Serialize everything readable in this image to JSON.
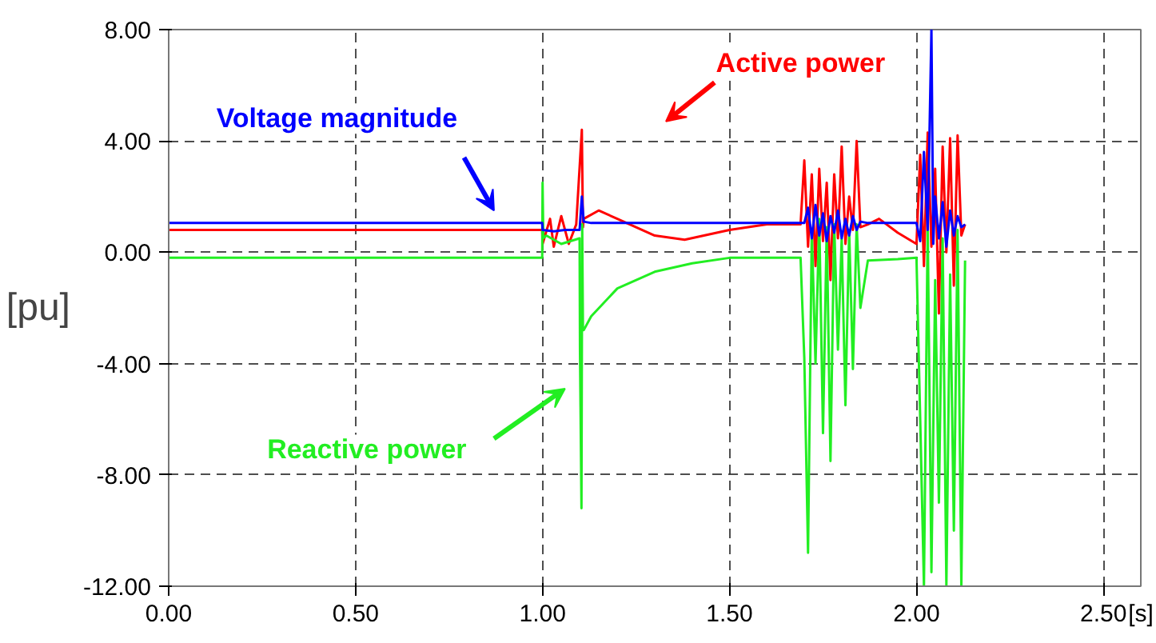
{
  "chart_data": {
    "type": "line",
    "xlabel": "[s]",
    "ylabel": "[pu]",
    "xlim": [
      0,
      2.6
    ],
    "ylim": [
      -12,
      8
    ],
    "xticks": [
      {
        "value": 0,
        "label": "0.00"
      },
      {
        "value": 0.5,
        "label": "0.50"
      },
      {
        "value": 1,
        "label": "1.00"
      },
      {
        "value": 1.5,
        "label": "1.50"
      },
      {
        "value": 2,
        "label": "2.00"
      },
      {
        "value": 2.5,
        "label": "2.50"
      }
    ],
    "yticks": [
      {
        "value": -12,
        "label": "-12.00"
      },
      {
        "value": -8,
        "label": "-8.00"
      },
      {
        "value": -4,
        "label": "-4.00"
      },
      {
        "value": 0,
        "label": "0.00"
      },
      {
        "value": 4,
        "label": "4.00"
      },
      {
        "value": 8,
        "label": "8.00"
      }
    ],
    "grid": true,
    "legend": false,
    "marker": "none",
    "line_style": "solid",
    "series": [
      {
        "name": "Active power",
        "color": "#ff0000",
        "x": [
          0,
          0.999,
          1.0,
          1.02,
          1.03,
          1.05,
          1.07,
          1.09,
          1.105,
          1.108,
          1.11,
          1.15,
          1.2,
          1.3,
          1.38,
          1.5,
          1.6,
          1.69,
          1.7,
          1.71,
          1.72,
          1.73,
          1.74,
          1.75,
          1.76,
          1.77,
          1.78,
          1.79,
          1.8,
          1.81,
          1.82,
          1.83,
          1.84,
          1.85,
          1.87,
          1.9,
          1.95,
          2.0,
          2.01,
          2.02,
          2.03,
          2.04,
          2.05,
          2.06,
          2.07,
          2.08,
          2.09,
          2.1,
          2.11,
          2.12,
          2.13
        ],
        "values": [
          0.8,
          0.8,
          0.3,
          1.2,
          0.2,
          1.3,
          0.3,
          1.0,
          4.4,
          0.9,
          1.2,
          1.5,
          1.2,
          0.6,
          0.45,
          0.8,
          1.0,
          1.0,
          3.3,
          0.2,
          2.8,
          -0.5,
          3.0,
          0.4,
          2.5,
          -1.0,
          2.8,
          0.5,
          3.8,
          0.3,
          2.0,
          0.8,
          4.0,
          0.9,
          1.0,
          1.2,
          0.7,
          0.3,
          3.5,
          -0.5,
          4.3,
          0.2,
          3.0,
          -2.2,
          3.8,
          0.0,
          4.1,
          -1.2,
          4.2,
          0.6,
          1.0
        ]
      },
      {
        "name": "Reactive power",
        "color": "#22ee22",
        "x": [
          0,
          0.999,
          1.0,
          1.002,
          1.01,
          1.05,
          1.099,
          1.1,
          1.104,
          1.106,
          1.108,
          1.11,
          1.13,
          1.2,
          1.3,
          1.4,
          1.5,
          1.6,
          1.69,
          1.7,
          1.71,
          1.72,
          1.73,
          1.74,
          1.75,
          1.76,
          1.77,
          1.78,
          1.79,
          1.8,
          1.81,
          1.82,
          1.83,
          1.84,
          1.85,
          1.87,
          1.95,
          2.0,
          2.01,
          2.02,
          2.03,
          2.04,
          2.05,
          2.06,
          2.07,
          2.08,
          2.09,
          2.1,
          2.11,
          2.12,
          2.13
        ],
        "values": [
          -0.2,
          -0.2,
          2.5,
          0.5,
          0.6,
          0.3,
          0.5,
          -3.5,
          -9.2,
          1.0,
          -2.8,
          -2.8,
          -2.3,
          -1.3,
          -0.7,
          -0.4,
          -0.2,
          -0.2,
          -0.2,
          -3.8,
          -10.8,
          0.8,
          -4.0,
          1.2,
          -6.5,
          0.9,
          -7.5,
          1.0,
          -3.5,
          0.5,
          -5.5,
          0.8,
          -4.2,
          1.0,
          -2.0,
          -0.3,
          -0.25,
          -0.2,
          -6.0,
          -12.0,
          1.0,
          -11.5,
          -1.0,
          -9.0,
          0.5,
          -12.0,
          -0.8,
          -10.0,
          0.8,
          -12.0,
          -0.3
        ]
      },
      {
        "name": "Voltage magnitude",
        "color": "#0000ff",
        "x": [
          0,
          0.999,
          1.0,
          1.03,
          1.06,
          1.099,
          1.105,
          1.11,
          1.13,
          1.5,
          1.7,
          1.71,
          1.72,
          1.73,
          1.74,
          1.75,
          1.76,
          1.77,
          1.78,
          1.79,
          1.8,
          1.81,
          1.82,
          1.83,
          1.84,
          1.85,
          1.87,
          1.95,
          2.0,
          2.01,
          2.02,
          2.03,
          2.04,
          2.045,
          2.05,
          2.06,
          2.07,
          2.08,
          2.09,
          2.1,
          2.11,
          2.12,
          2.13
        ],
        "values": [
          1.05,
          1.05,
          0.8,
          0.75,
          0.8,
          0.8,
          2.0,
          1.1,
          1.05,
          1.05,
          1.05,
          1.6,
          0.5,
          1.7,
          0.6,
          1.4,
          0.4,
          1.3,
          0.7,
          1.5,
          0.5,
          1.2,
          0.6,
          1.3,
          0.8,
          1.1,
          1.05,
          1.05,
          1.05,
          0.4,
          3.6,
          0.8,
          8.0,
          0.3,
          2.0,
          0.5,
          1.8,
          0.2,
          1.5,
          0.6,
          1.3,
          0.9,
          1.0
        ]
      }
    ]
  }
}
